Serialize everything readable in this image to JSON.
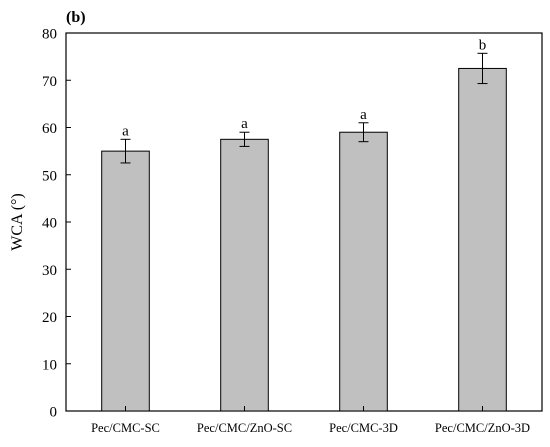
{
  "panel_label": "(b)",
  "chart_data": {
    "type": "bar",
    "title": "",
    "xlabel": "",
    "ylabel": "WCA (°)",
    "ylim": [
      0,
      80
    ],
    "yticks": [
      0,
      10,
      20,
      30,
      40,
      50,
      60,
      70,
      80
    ],
    "categories": [
      "Pec/CMC-SC",
      "Pec/CMC/ZnO-SC",
      "Pec/CMC-3D",
      "Pec/CMC/ZnO-3D"
    ],
    "values": [
      55,
      57.5,
      59,
      72.5
    ],
    "errors": [
      2.5,
      1.5,
      2.0,
      3.2
    ],
    "significance_letters": [
      "a",
      "a",
      "a",
      "b"
    ],
    "bar_color": "#c0c0c0",
    "grid": false
  }
}
